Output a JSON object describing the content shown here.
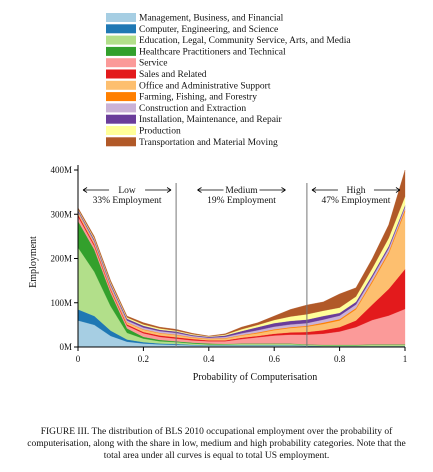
{
  "chart_data": {
    "type": "stacked_area",
    "x_label": "Probability of Computerisation",
    "y_label": "Employment",
    "caption": "FIGURE III. The distribution of BLS 2010 occupational employment over the probability of computerisation, along with the share in low, medium and high probability categories. Note that the total area under all curves is equal to total US employment.",
    "x": [
      0,
      0.05,
      0.1,
      0.15,
      0.2,
      0.25,
      0.3,
      0.35,
      0.4,
      0.45,
      0.5,
      0.55,
      0.6,
      0.65,
      0.7,
      0.75,
      0.8,
      0.85,
      0.9,
      0.95,
      1
    ],
    "xlim": [
      0,
      1
    ],
    "xticks": [
      0,
      0.2,
      0.4,
      0.6,
      0.8,
      1
    ],
    "ylim": [
      0,
      400
    ],
    "yticks": [
      {
        "value": 0,
        "label": "0M"
      },
      {
        "value": 100,
        "label": "100M"
      },
      {
        "value": 200,
        "label": "200M"
      },
      {
        "value": 300,
        "label": "300M"
      },
      {
        "value": 400,
        "label": "400M"
      }
    ],
    "dividers": [
      0.3,
      0.7
    ],
    "annotations": [
      {
        "label": "Low",
        "share": "33% Employment"
      },
      {
        "label": "Medium",
        "share": "19% Employment"
      },
      {
        "label": "High",
        "share": "47% Employment"
      }
    ],
    "series": [
      {
        "name": "Management, Business, and Financial",
        "color": "#a6cee3",
        "values": [
          60,
          50,
          25,
          12,
          8,
          6,
          5,
          4,
          3,
          3,
          3,
          3,
          3,
          3,
          2,
          2,
          2,
          2,
          2,
          2,
          2
        ]
      },
      {
        "name": "Computer, Engineering, and Science",
        "color": "#1f78b4",
        "values": [
          25,
          20,
          12,
          5,
          3,
          2,
          2,
          1,
          1,
          1,
          1,
          1,
          1,
          1,
          1,
          0,
          0,
          0,
          0,
          0,
          0
        ]
      },
      {
        "name": "Education, Legal, Community Service, Arts, and Media",
        "color": "#b2df8a",
        "values": [
          140,
          100,
          55,
          15,
          8,
          5,
          4,
          3,
          2,
          2,
          3,
          3,
          3,
          3,
          2,
          2,
          2,
          2,
          3,
          3,
          3
        ]
      },
      {
        "name": "Healthcare Practitioners and Technical",
        "color": "#33a02c",
        "values": [
          60,
          50,
          30,
          10,
          4,
          3,
          2,
          2,
          2,
          1,
          1,
          1,
          1,
          1,
          1,
          1,
          1,
          1,
          1,
          1,
          1
        ]
      },
      {
        "name": "Service",
        "color": "#fb9a99",
        "values": [
          10,
          8,
          6,
          6,
          8,
          7,
          6,
          5,
          5,
          6,
          10,
          14,
          18,
          20,
          22,
          25,
          30,
          40,
          55,
          65,
          80
        ]
      },
      {
        "name": "Sales and Related",
        "color": "#e31a1c",
        "values": [
          5,
          4,
          3,
          3,
          3,
          3,
          3,
          3,
          2,
          2,
          3,
          3,
          4,
          5,
          6,
          8,
          10,
          15,
          35,
          60,
          90
        ]
      },
      {
        "name": "Office and Administrative Support",
        "color": "#fdbf6f",
        "values": [
          5,
          4,
          4,
          4,
          5,
          5,
          5,
          3,
          3,
          4,
          5,
          6,
          8,
          10,
          12,
          14,
          15,
          25,
          50,
          80,
          130
        ]
      },
      {
        "name": "Farming, Fishing, and Forestry",
        "color": "#ff7f00",
        "values": [
          0,
          0,
          0,
          1,
          1,
          1,
          1,
          1,
          1,
          1,
          1,
          2,
          2,
          2,
          2,
          3,
          3,
          3,
          4,
          4,
          5
        ]
      },
      {
        "name": "Construction and Extraction",
        "color": "#cab2d6",
        "values": [
          2,
          3,
          4,
          4,
          4,
          4,
          4,
          3,
          2,
          3,
          4,
          5,
          6,
          6,
          6,
          7,
          8,
          8,
          8,
          8,
          5
        ]
      },
      {
        "name": "Installation, Maintenance, and Repair",
        "color": "#6a3d9a",
        "values": [
          3,
          4,
          4,
          4,
          4,
          3,
          3,
          2,
          2,
          3,
          5,
          7,
          8,
          8,
          8,
          8,
          6,
          6,
          5,
          5,
          4
        ]
      },
      {
        "name": "Production",
        "color": "#ffff99",
        "values": [
          2,
          3,
          3,
          3,
          3,
          3,
          2,
          2,
          1,
          2,
          4,
          5,
          7,
          10,
          12,
          12,
          12,
          12,
          15,
          18,
          20
        ]
      },
      {
        "name": "Transportation and Material Moving",
        "color": "#b15928",
        "values": [
          3,
          4,
          4,
          3,
          4,
          3,
          3,
          2,
          1,
          2,
          5,
          5,
          9,
          16,
          21,
          20,
          31,
          20,
          22,
          30,
          60
        ]
      }
    ]
  }
}
